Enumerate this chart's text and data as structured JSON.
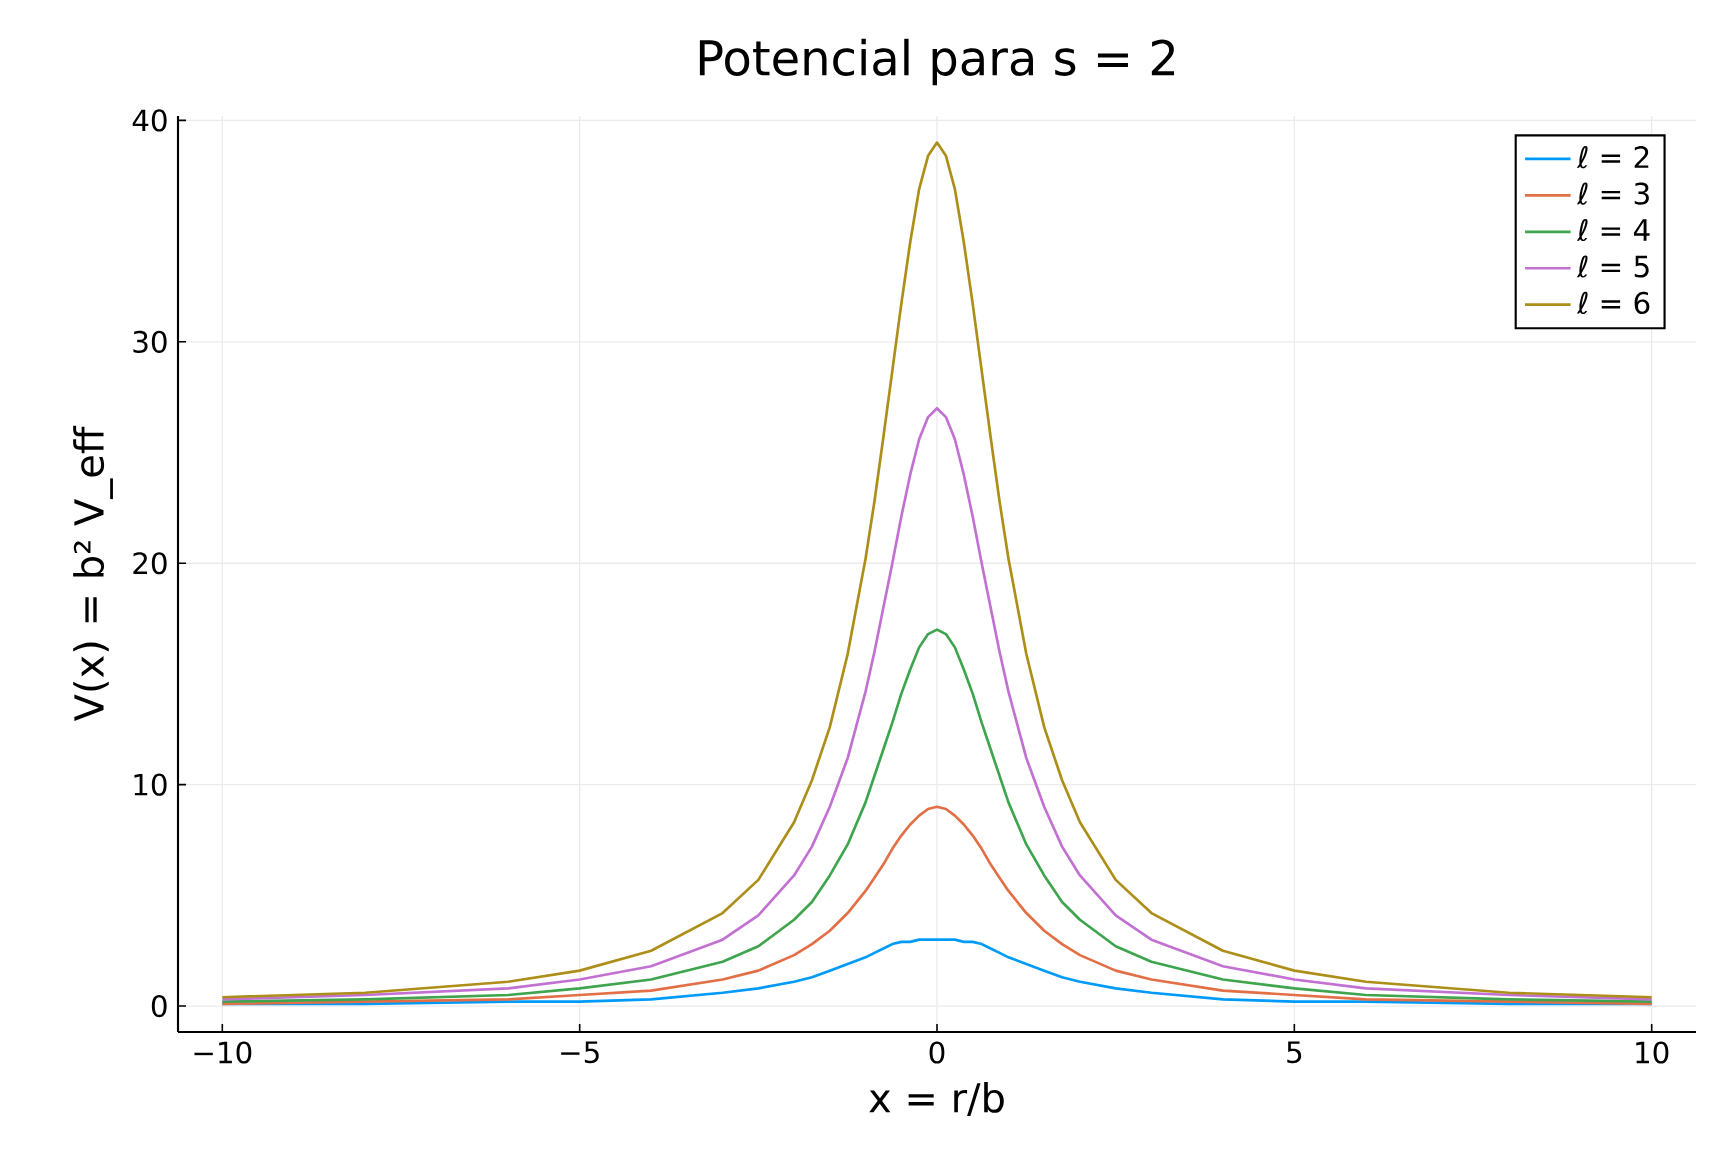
{
  "chart_data": {
    "type": "line",
    "title": "Potencial para s = 2",
    "xlabel": "x = r/b",
    "ylabel": "V(x) = b² V_eff",
    "x": [
      -10,
      -8,
      -6,
      -5,
      -4,
      -3,
      -2.5,
      -2,
      -1.75,
      -1.5,
      -1.25,
      -1,
      -0.875,
      -0.75,
      -0.625,
      -0.5,
      -0.375,
      -0.25,
      -0.125,
      0,
      0.125,
      0.25,
      0.375,
      0.5,
      0.625,
      0.75,
      0.875,
      1,
      1.25,
      1.5,
      1.75,
      2,
      2.5,
      3,
      4,
      5,
      6,
      8,
      10
    ],
    "series": [
      {
        "name": "ℓ = 2",
        "color": "#009af9",
        "values": [
          0.1,
          0.1,
          0.2,
          0.2,
          0.3,
          0.6,
          0.8,
          1.1,
          1.3,
          1.6,
          1.9,
          2.2,
          2.4,
          2.6,
          2.8,
          2.9,
          2.9,
          3,
          3,
          3,
          3,
          3,
          2.9,
          2.9,
          2.8,
          2.6,
          2.4,
          2.2,
          1.9,
          1.6,
          1.3,
          1.1,
          0.8,
          0.6,
          0.3,
          0.2,
          0.2,
          0.1,
          0.1
        ]
      },
      {
        "name": "ℓ = 3",
        "color": "#e26f46",
        "values": [
          0.1,
          0.2,
          0.3,
          0.5,
          0.7,
          1.2,
          1.6,
          2.3,
          2.8,
          3.4,
          4.2,
          5.2,
          5.8,
          6.4,
          7.1,
          7.7,
          8.2,
          8.6,
          8.9,
          9,
          8.9,
          8.6,
          8.2,
          7.7,
          7.1,
          6.4,
          5.8,
          5.2,
          4.2,
          3.4,
          2.8,
          2.3,
          1.6,
          1.2,
          0.7,
          0.5,
          0.3,
          0.2,
          0.1
        ]
      },
      {
        "name": "ℓ = 4",
        "color": "#3ea44e",
        "values": [
          0.2,
          0.3,
          0.5,
          0.8,
          1.2,
          2,
          2.7,
          3.9,
          4.7,
          5.9,
          7.3,
          9.2,
          10.4,
          11.6,
          12.8,
          14.1,
          15.2,
          16.2,
          16.8,
          17,
          16.8,
          16.2,
          15.2,
          14.1,
          12.8,
          11.6,
          10.4,
          9.2,
          7.3,
          5.9,
          4.7,
          3.9,
          2.7,
          2,
          1.2,
          0.8,
          0.5,
          0.3,
          0.2
        ]
      },
      {
        "name": "ℓ = 5",
        "color": "#c271d2",
        "values": [
          0.3,
          0.5,
          0.8,
          1.2,
          1.8,
          3,
          4.1,
          5.9,
          7.2,
          9,
          11.2,
          14.2,
          16,
          18,
          20,
          22.1,
          24,
          25.6,
          26.6,
          27,
          26.6,
          25.6,
          24,
          22.1,
          20,
          18,
          16,
          14.2,
          11.2,
          9,
          7.2,
          5.9,
          4.1,
          3,
          1.8,
          1.2,
          0.8,
          0.5,
          0.3
        ]
      },
      {
        "name": "ℓ = 6",
        "color": "#ac8e18",
        "values": [
          0.4,
          0.6,
          1.1,
          1.6,
          2.5,
          4.2,
          5.7,
          8.3,
          10.2,
          12.6,
          15.9,
          20.2,
          22.8,
          25.7,
          28.7,
          31.7,
          34.5,
          36.9,
          38.4,
          39,
          38.4,
          36.9,
          34.5,
          31.7,
          28.7,
          25.7,
          22.8,
          20.2,
          15.9,
          12.6,
          10.2,
          8.3,
          5.7,
          4.2,
          2.5,
          1.6,
          1.1,
          0.6,
          0.4
        ]
      }
    ],
    "xlim": [
      -10.62,
      10.62
    ],
    "ylim": [
      -1.17,
      40.2
    ],
    "xticks": [
      {
        "value": -10,
        "label": "−10"
      },
      {
        "value": -5,
        "label": "−5"
      },
      0,
      5,
      10
    ],
    "yticks": [
      0,
      10,
      20,
      30,
      40
    ],
    "grid": true,
    "legend": "top right",
    "line_style": "solid",
    "marker": "none"
  }
}
